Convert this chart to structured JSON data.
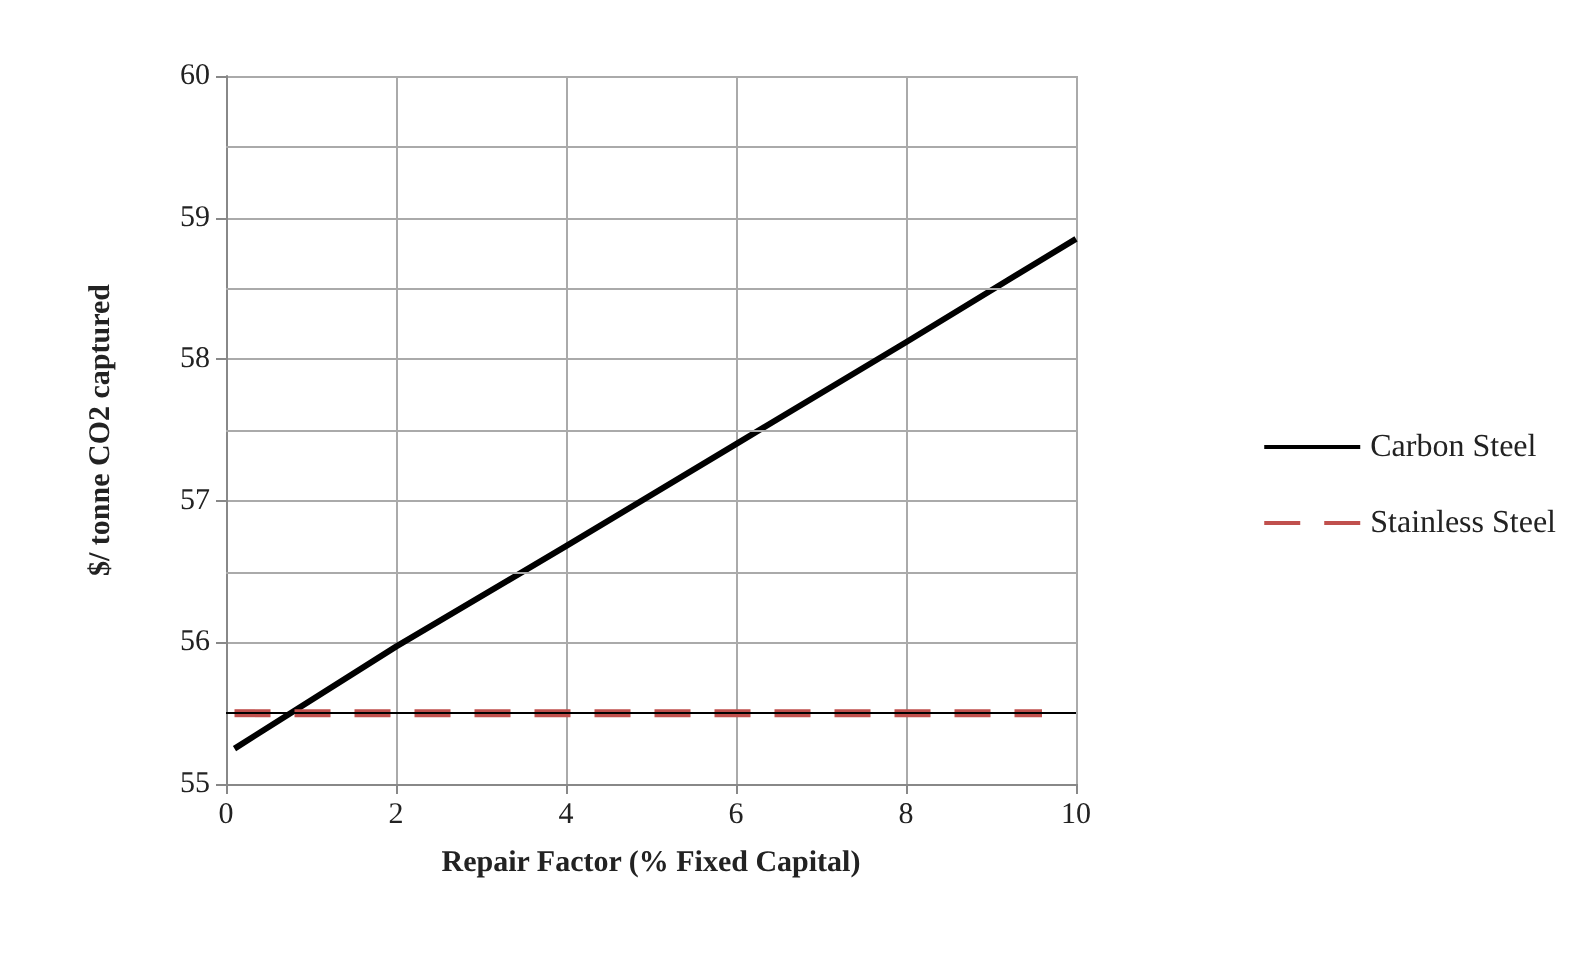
{
  "chart_data": {
    "type": "line",
    "xlabel": "Repair Factor (% Fixed Capital)",
    "ylabel": "$/ tonne CO2 captured",
    "series": [
      {
        "name": "Carbon Steel",
        "color": "#000000",
        "x": [
          0.1,
          2,
          4,
          6,
          8,
          10
        ],
        "values": [
          55.25,
          55.97,
          56.68,
          57.4,
          58.12,
          58.85
        ],
        "line_style": "solid"
      },
      {
        "name": "Stainless Steel",
        "color": "#c0504d",
        "x": [
          0.1,
          9.6
        ],
        "values": [
          55.5,
          55.5
        ],
        "line_style": "dashed"
      }
    ],
    "xlim": [
      0,
      10
    ],
    "xticks": [
      0,
      2,
      4,
      6,
      8,
      10
    ],
    "ylim": [
      55,
      60
    ],
    "yticks": [
      55,
      {
        "value": 55.5,
        "label": null
      },
      56,
      {
        "value": 56.5,
        "label": null
      },
      57,
      {
        "value": 57.5,
        "label": null
      },
      58,
      {
        "value": 58.5,
        "label": null
      },
      59,
      {
        "value": 59.5,
        "label": null
      },
      60
    ],
    "ref_lines": [
      {
        "axis": "y",
        "value": 55.5,
        "label": null,
        "color": "#000000",
        "line_style": "solid"
      }
    ],
    "grid": true,
    "legend": "right",
    "marker": "none"
  }
}
